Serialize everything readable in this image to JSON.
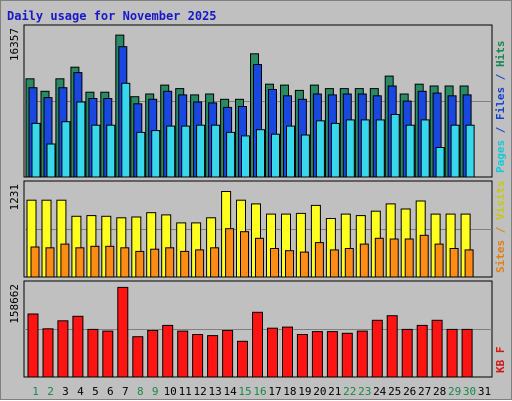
{
  "title": "Daily usage for November 2025",
  "chart_data": {
    "type": "bar",
    "title": "Daily usage for November 2025",
    "categories": [
      "1",
      "2",
      "3",
      "4",
      "5",
      "6",
      "7",
      "8",
      "9",
      "10",
      "11",
      "12",
      "13",
      "14",
      "15",
      "16",
      "17",
      "18",
      "19",
      "20",
      "21",
      "22",
      "23",
      "24",
      "25",
      "26",
      "27",
      "28",
      "29",
      "30",
      "31"
    ],
    "weekend_days": [
      1,
      2,
      8,
      9,
      15,
      16,
      22,
      23,
      29,
      30
    ],
    "panels": [
      {
        "id": "hits",
        "max_label": "16357",
        "ymax": 16357,
        "side_labels": [
          {
            "text": "Hits",
            "color": "#188850"
          },
          {
            "text": " / ",
            "color": "#1840d0"
          },
          {
            "text": "Files",
            "color": "#1840d0"
          },
          {
            "text": " / ",
            "color": "#1840d0"
          },
          {
            "text": "Pages",
            "color": "#18c8d8"
          }
        ],
        "series": [
          {
            "name": "Hits",
            "color": "#2a8a64",
            "values": [
              11000,
              9600,
              11000,
              12300,
              9500,
              9500,
              15900,
              9000,
              9300,
              10300,
              9900,
              9200,
              9300,
              8700,
              8700,
              13800,
              10400,
              10300,
              9700,
              10300,
              9900,
              9900,
              9900,
              9900,
              11300,
              9300,
              10400,
              10200,
              10200,
              10200,
              null
            ]
          },
          {
            "name": "Files",
            "color": "#1848e0",
            "values": [
              10000,
              8900,
              10000,
              11700,
              8800,
              8800,
              14600,
              8200,
              8700,
              9600,
              9200,
              8400,
              8300,
              7800,
              7900,
              12600,
              9800,
              9100,
              8700,
              9300,
              9200,
              9300,
              9300,
              9100,
              10200,
              8500,
              9600,
              9400,
              9100,
              9200,
              null
            ]
          },
          {
            "name": "Pages",
            "color": "#38d8ec",
            "values": [
              6000,
              3700,
              6200,
              8400,
              5800,
              5800,
              10500,
              5000,
              5200,
              5700,
              5700,
              5800,
              5800,
              5000,
              4600,
              5300,
              4800,
              5700,
              4700,
              6300,
              6000,
              6400,
              6400,
              6400,
              7000,
              5800,
              6400,
              3300,
              5800,
              5800,
              null
            ]
          }
        ]
      },
      {
        "id": "visits",
        "max_label": "1231",
        "ymax": 1231,
        "side_labels": [
          {
            "text": "Visits",
            "color": "#c8c810"
          },
          {
            "text": " / ",
            "color": "#e08010"
          },
          {
            "text": "Sites",
            "color": "#e08010"
          }
        ],
        "series": [
          {
            "name": "Visits",
            "color": "#ffff20",
            "values": [
              1050,
              1050,
              1050,
              830,
              840,
              830,
              810,
              820,
              880,
              850,
              740,
              740,
              810,
              1170,
              1050,
              1000,
              860,
              860,
              870,
              980,
              800,
              860,
              840,
              900,
              1000,
              930,
              1040,
              860,
              860,
              860,
              null
            ]
          },
          {
            "name": "Sites",
            "color": "#ff8c14",
            "values": [
              410,
              400,
              450,
              400,
              420,
              420,
              400,
              350,
              380,
              400,
              350,
              370,
              400,
              660,
              620,
              530,
              390,
              360,
              340,
              470,
              370,
              390,
              450,
              530,
              520,
              520,
              570,
              450,
              390,
              370,
              null
            ]
          }
        ]
      },
      {
        "id": "kbytes",
        "max_label": "158662",
        "ymax": 158662,
        "side_labels": [
          {
            "text": "KB F",
            "color": "#d01818"
          }
        ],
        "series": [
          {
            "name": "KB F",
            "color": "#ff1414",
            "values": [
              111000,
              85000,
              99000,
              107000,
              84000,
              81000,
              158000,
              71000,
              82000,
              91000,
              81000,
              75000,
              73000,
              82000,
              63000,
              114000,
              86000,
              88000,
              75000,
              80000,
              80000,
              77000,
              81000,
              100000,
              108000,
              84000,
              91000,
              100000,
              84000,
              84000,
              null
            ]
          }
        ]
      }
    ]
  }
}
